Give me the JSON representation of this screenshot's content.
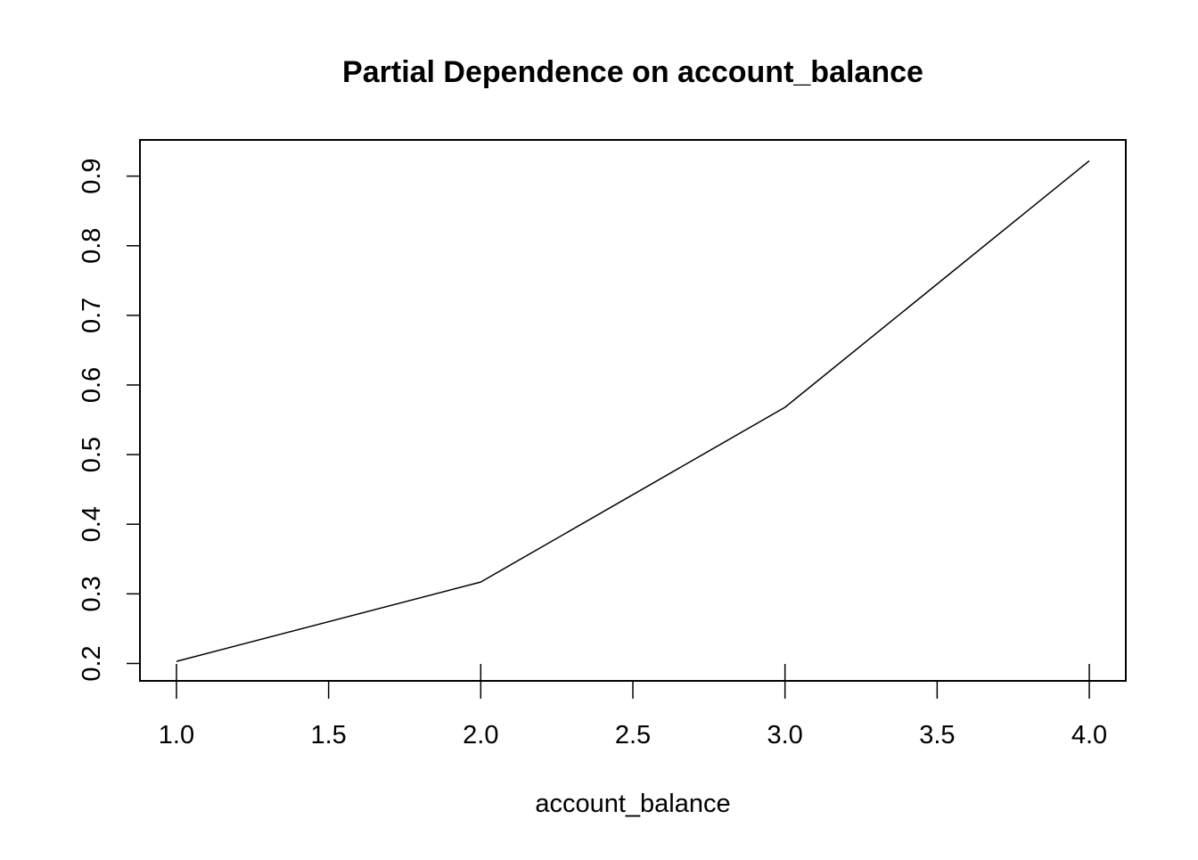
{
  "chart_data": {
    "type": "line",
    "title": "Partial Dependence on account_balance",
    "xlabel": "account_balance",
    "ylabel": "",
    "xlim": [
      0.88,
      4.12
    ],
    "ylim": [
      0.175,
      0.952
    ],
    "x_ticks": [
      1.0,
      1.5,
      2.0,
      2.5,
      3.0,
      3.5,
      4.0
    ],
    "x_tick_labels": [
      "1.0",
      "1.5",
      "2.0",
      "2.5",
      "3.0",
      "3.5",
      "4.0"
    ],
    "y_ticks": [
      0.2,
      0.3,
      0.4,
      0.5,
      0.6,
      0.7,
      0.8,
      0.9
    ],
    "y_tick_labels": [
      "0.2",
      "0.3",
      "0.4",
      "0.5",
      "0.6",
      "0.7",
      "0.8",
      "0.9"
    ],
    "rug_x": [
      1,
      2,
      3,
      4
    ],
    "series": [
      {
        "x": [
          1,
          2,
          3,
          4
        ],
        "values": [
          0.203,
          0.317,
          0.568,
          0.922
        ],
        "color": "#000000"
      }
    ],
    "grid": false,
    "legend": "none",
    "colors": {
      "line": "#000000",
      "frame": "#000000",
      "background": "#ffffff"
    }
  }
}
